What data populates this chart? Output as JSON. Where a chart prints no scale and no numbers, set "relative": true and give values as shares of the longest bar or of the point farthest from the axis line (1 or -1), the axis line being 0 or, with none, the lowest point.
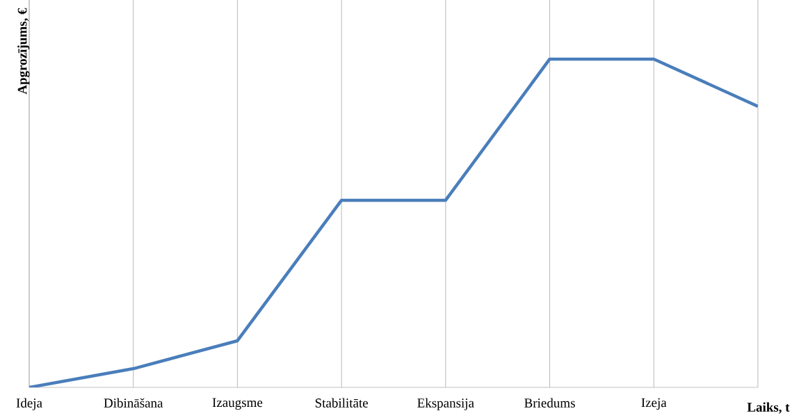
{
  "chart_data": {
    "type": "line",
    "relative": true,
    "grid": "x",
    "xlabel": "Laiks, t",
    "ylabel": "Apgrozījums, €",
    "categories": [
      "Ideja",
      "Dibināšana",
      "Izaugsme",
      "Stabilitāte",
      "Ekspansija",
      "Briedums",
      "Izeja",
      null
    ],
    "series": [
      {
        "color": "#4a7ebb",
        "values": [
          0,
          0.057,
          0.142,
          0.57,
          0.57,
          1,
          1,
          0.856
        ]
      }
    ]
  }
}
